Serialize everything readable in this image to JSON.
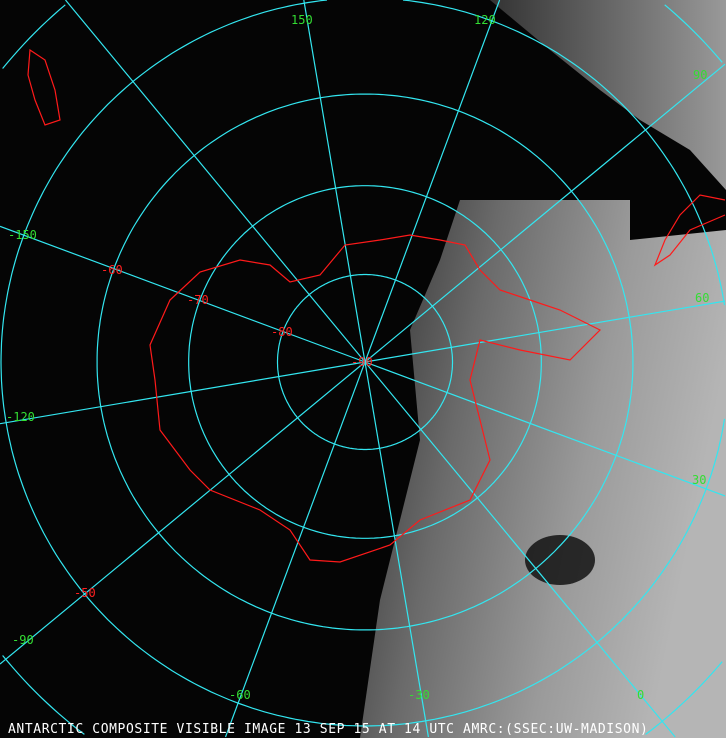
{
  "caption": "ANTARCTIC COMPOSITE VISIBLE IMAGE 13 SEP 15 AT 14 UTC AMRC:(SSEC:UW-MADISON)",
  "colors": {
    "graticule": "#33e6f0",
    "coastline": "#ff1a1a",
    "longitude_labels": "#33dd33",
    "latitude_labels": "#ff2020"
  },
  "projection": "south polar stereographic",
  "longitude_labels": [
    "150",
    "120",
    "90",
    "60",
    "30",
    "0",
    "-30",
    "-60",
    "-90",
    "-120",
    "-150"
  ],
  "latitude_labels": [
    "-50",
    "-60",
    "-70",
    "-80",
    "-90"
  ]
}
